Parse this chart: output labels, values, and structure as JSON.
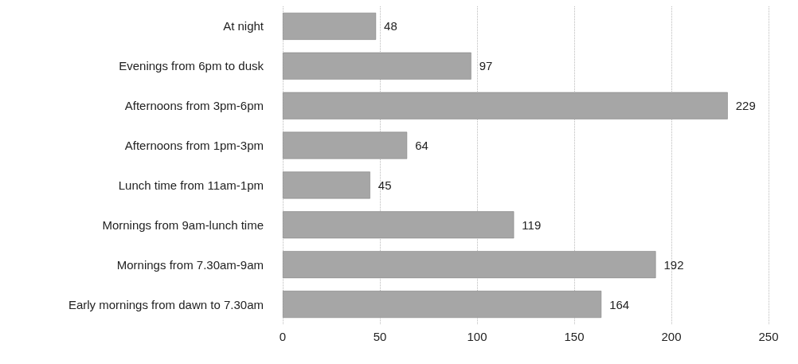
{
  "chart_data": {
    "type": "bar",
    "orientation": "horizontal",
    "categories": [
      "At night",
      "Evenings from 6pm to dusk",
      "Afternoons from 3pm-6pm",
      "Afternoons from 1pm-3pm",
      "Lunch time from 11am-1pm",
      "Mornings from 9am-lunch time",
      "Mornings from 7.30am-9am",
      "Early mornings from dawn to 7.30am"
    ],
    "values": [
      48,
      97,
      229,
      64,
      45,
      119,
      192,
      164
    ],
    "color": "#a6a6a6",
    "xlim": [
      0,
      250
    ],
    "xticks": [
      0,
      50,
      100,
      150,
      200,
      250
    ],
    "grid": "x",
    "data_labels": true
  }
}
